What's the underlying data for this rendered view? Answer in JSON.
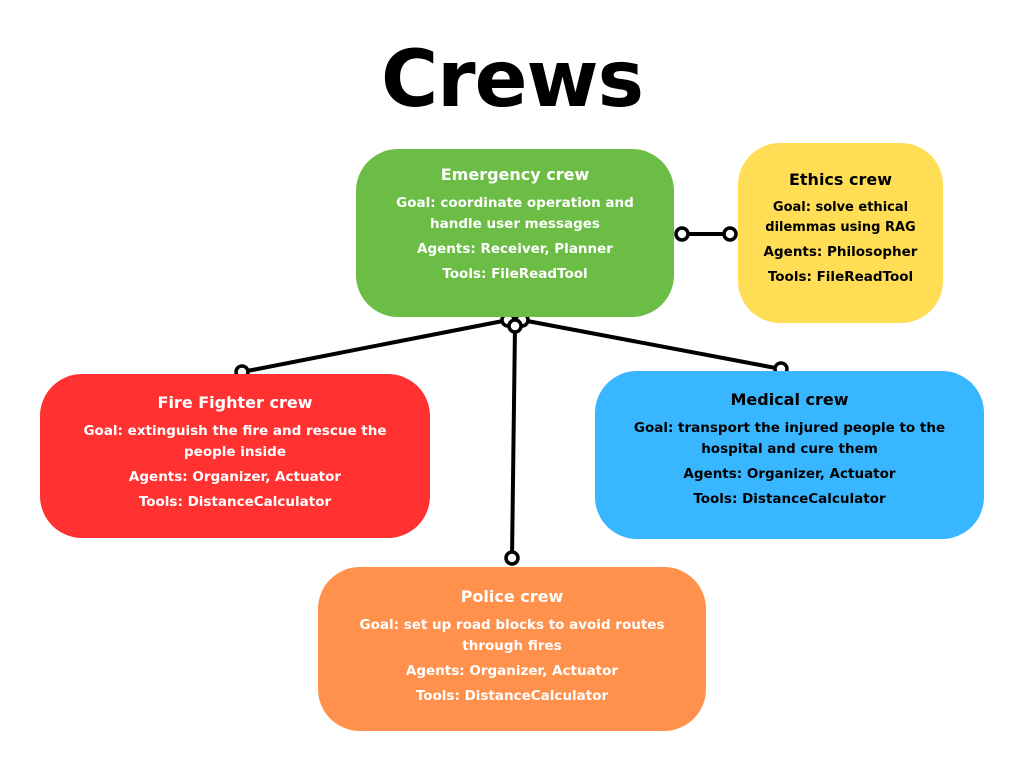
{
  "title": "Crews",
  "crews": {
    "emergency": {
      "name": "Emergency crew",
      "goal": "Goal: coordinate operation and handle user messages",
      "agents": "Agents: Receiver, Planner",
      "tools": "Tools: FileReadTool",
      "color": "#6bbd45",
      "text_color": "#ffffff"
    },
    "ethics": {
      "name": "Ethics crew",
      "goal": "Goal: solve ethical dilemmas using RAG",
      "agents": "Agents: Philosopher",
      "tools": "Tools: FileReadTool",
      "color": "#ffdd55",
      "text_color": "#000000"
    },
    "fire": {
      "name": "Fire Fighter crew",
      "goal": "Goal: extinguish the  fire and rescue the people inside",
      "agents": "Agents: Organizer, Actuator",
      "tools": "Tools: DistanceCalculator",
      "color": "#ff3131",
      "text_color": "#ffffff"
    },
    "medical": {
      "name": "Medical crew",
      "goal": "Goal: transport the injured people to the hospital and cure them",
      "agents": "Agents: Organizer, Actuator",
      "tools": "Tools: DistanceCalculator",
      "color": "#38b6ff",
      "text_color": "#000000"
    },
    "police": {
      "name": "Police crew",
      "goal": "Goal: set up road blocks to avoid routes through fires",
      "agents": "Agents: Organizer, Actuator",
      "tools": "Tools: DistanceCalculator",
      "color": "#ff914d",
      "text_color": "#ffffff"
    }
  },
  "connections": [
    {
      "from": "emergency",
      "to": "ethics"
    },
    {
      "from": "emergency",
      "to": "fire"
    },
    {
      "from": "emergency",
      "to": "medical"
    },
    {
      "from": "emergency",
      "to": "police"
    }
  ],
  "connector_color": "#000000"
}
